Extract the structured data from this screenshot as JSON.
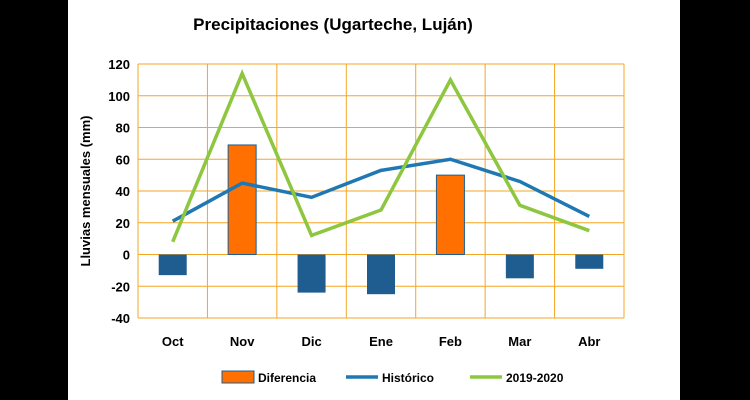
{
  "chart_data": {
    "type": "bar+line",
    "title": "Precipitaciones (Ugarteche, Luján)",
    "ylabel": "Lluvias mensuales (mm)",
    "xlabel": "",
    "ylim": [
      -40,
      120
    ],
    "yticks": [
      -40,
      -20,
      0,
      20,
      40,
      60,
      80,
      100,
      120
    ],
    "categories": [
      "Oct",
      "Nov",
      "Dic",
      "Ene",
      "Feb",
      "Mar",
      "Abr"
    ],
    "grid": true,
    "legend_position": "bottom",
    "series": [
      {
        "name": "Diferencia",
        "kind": "bar",
        "values": [
          -13,
          69,
          -24,
          -25,
          50,
          -15,
          -9
        ],
        "color_positive": "#ff7000",
        "color_negative": "#1f5c8f"
      },
      {
        "name": "Histórico",
        "kind": "line",
        "values": [
          21,
          45,
          36,
          53,
          60,
          46,
          24
        ],
        "color": "#1f78b4"
      },
      {
        "name": "2019-2020",
        "kind": "line",
        "values": [
          8,
          114,
          12,
          28,
          110,
          31,
          15
        ],
        "color": "#8dc63f"
      }
    ],
    "colors": {
      "grid": "#f5a623",
      "background": "#ffffff",
      "frame": "#000000"
    }
  }
}
